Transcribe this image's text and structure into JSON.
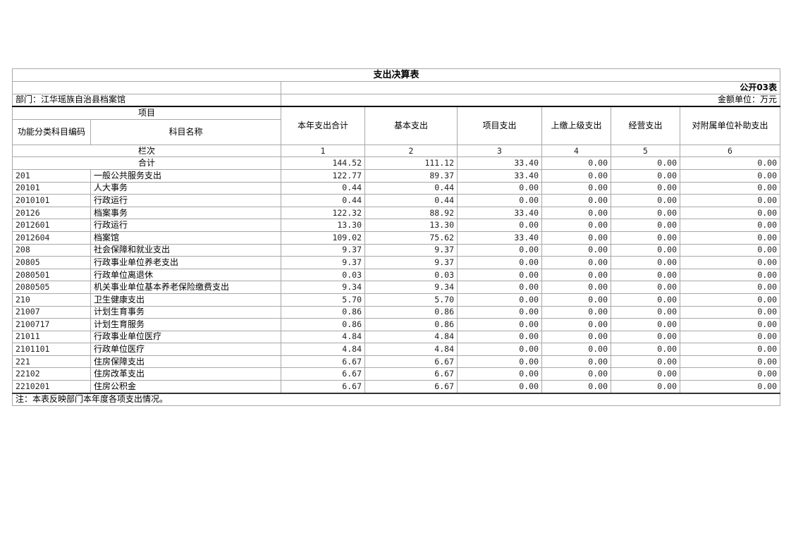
{
  "title": "支出决算表",
  "table_code": "公开03表",
  "department": "部门：江华瑶族自治县档案馆",
  "unit": "金额单位：万元",
  "headers": {
    "project": "项目",
    "code": "功能分类科目编码",
    "name": "科目名称",
    "columns": [
      "本年支出合计",
      "基本支出",
      "项目支出",
      "上缴上级支出",
      "经营支出",
      "对附属单位补助支出"
    ]
  },
  "column_index_label": "栏次",
  "column_numbers": [
    "1",
    "2",
    "3",
    "4",
    "5",
    "6"
  ],
  "total": {
    "label": "合计",
    "values": [
      "144.52",
      "111.12",
      "33.40",
      "0.00",
      "0.00",
      "0.00"
    ]
  },
  "rows": [
    {
      "code": "201",
      "name": "一般公共服务支出",
      "values": [
        "122.77",
        "89.37",
        "33.40",
        "0.00",
        "0.00",
        "0.00"
      ]
    },
    {
      "code": "20101",
      "name": "人大事务",
      "values": [
        "0.44",
        "0.44",
        "0.00",
        "0.00",
        "0.00",
        "0.00"
      ]
    },
    {
      "code": "2010101",
      "name": "行政运行",
      "values": [
        "0.44",
        "0.44",
        "0.00",
        "0.00",
        "0.00",
        "0.00"
      ]
    },
    {
      "code": "20126",
      "name": "档案事务",
      "values": [
        "122.32",
        "88.92",
        "33.40",
        "0.00",
        "0.00",
        "0.00"
      ]
    },
    {
      "code": "2012601",
      "name": "行政运行",
      "values": [
        "13.30",
        "13.30",
        "0.00",
        "0.00",
        "0.00",
        "0.00"
      ]
    },
    {
      "code": "2012604",
      "name": "档案馆",
      "values": [
        "109.02",
        "75.62",
        "33.40",
        "0.00",
        "0.00",
        "0.00"
      ]
    },
    {
      "code": "208",
      "name": "社会保障和就业支出",
      "values": [
        "9.37",
        "9.37",
        "0.00",
        "0.00",
        "0.00",
        "0.00"
      ]
    },
    {
      "code": "20805",
      "name": "行政事业单位养老支出",
      "values": [
        "9.37",
        "9.37",
        "0.00",
        "0.00",
        "0.00",
        "0.00"
      ]
    },
    {
      "code": "2080501",
      "name": "行政单位离退休",
      "values": [
        "0.03",
        "0.03",
        "0.00",
        "0.00",
        "0.00",
        "0.00"
      ]
    },
    {
      "code": "2080505",
      "name": "机关事业单位基本养老保险缴费支出",
      "values": [
        "9.34",
        "9.34",
        "0.00",
        "0.00",
        "0.00",
        "0.00"
      ]
    },
    {
      "code": "210",
      "name": "卫生健康支出",
      "values": [
        "5.70",
        "5.70",
        "0.00",
        "0.00",
        "0.00",
        "0.00"
      ]
    },
    {
      "code": "21007",
      "name": "计划生育事务",
      "values": [
        "0.86",
        "0.86",
        "0.00",
        "0.00",
        "0.00",
        "0.00"
      ]
    },
    {
      "code": "2100717",
      "name": "计划生育服务",
      "values": [
        "0.86",
        "0.86",
        "0.00",
        "0.00",
        "0.00",
        "0.00"
      ]
    },
    {
      "code": "21011",
      "name": "行政事业单位医疗",
      "values": [
        "4.84",
        "4.84",
        "0.00",
        "0.00",
        "0.00",
        "0.00"
      ]
    },
    {
      "code": "2101101",
      "name": "行政单位医疗",
      "values": [
        "4.84",
        "4.84",
        "0.00",
        "0.00",
        "0.00",
        "0.00"
      ]
    },
    {
      "code": "221",
      "name": "住房保障支出",
      "values": [
        "6.67",
        "6.67",
        "0.00",
        "0.00",
        "0.00",
        "0.00"
      ]
    },
    {
      "code": "22102",
      "name": "住房改革支出",
      "values": [
        "6.67",
        "6.67",
        "0.00",
        "0.00",
        "0.00",
        "0.00"
      ]
    },
    {
      "code": "2210201",
      "name": "住房公积金",
      "values": [
        "6.67",
        "6.67",
        "0.00",
        "0.00",
        "0.00",
        "0.00"
      ]
    }
  ],
  "note": "注：本表反映部门本年度各项支出情况。"
}
